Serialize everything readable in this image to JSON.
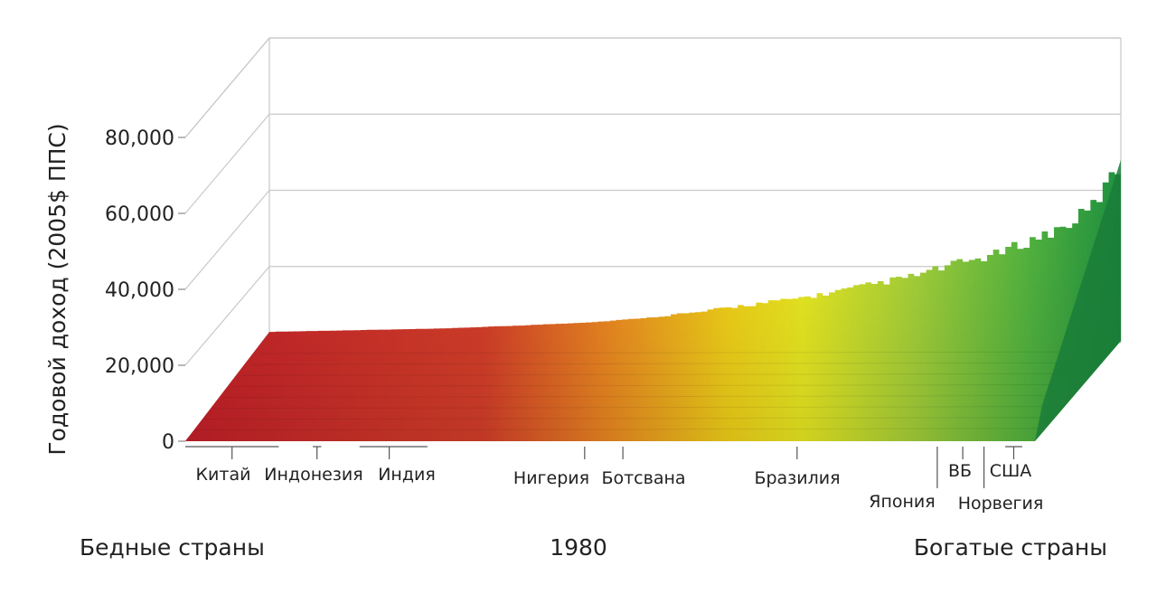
{
  "chart_data": {
    "type": "bar",
    "ylabel": "Годовой доход (2005$ ППС)",
    "ylim": [
      0,
      80000
    ],
    "yticks": [
      "0",
      "20,000",
      "40,000",
      "60,000",
      "80,000"
    ],
    "ytick_values": [
      0,
      20000,
      40000,
      60000,
      80000
    ],
    "year_label": "1980",
    "left_label": "Бедные страны",
    "right_label": "Богатые страны",
    "countries": [
      {
        "name": "Китай",
        "pos": 0.055,
        "range": [
          0.0,
          0.11
        ]
      },
      {
        "name": "Индонезия",
        "pos": 0.155,
        "range": [
          0.15,
          0.16
        ]
      },
      {
        "name": "Индия",
        "pos": 0.24,
        "range": [
          0.205,
          0.285
        ]
      },
      {
        "name": "Нигерия",
        "pos": 0.47,
        "range": [
          0.47,
          0.47
        ]
      },
      {
        "name": "Ботсвана",
        "pos": 0.515,
        "range": [
          0.515,
          0.515
        ]
      },
      {
        "name": "Бразилия",
        "pos": 0.72,
        "range": [
          0.72,
          0.72
        ]
      },
      {
        "name": "Япония",
        "pos": 0.885,
        "range": [
          0.885,
          0.885
        ]
      },
      {
        "name": "ВБ",
        "pos": 0.915,
        "range": [
          0.915,
          0.915
        ]
      },
      {
        "name": "Норвегия",
        "pos": 0.94,
        "range": [
          0.94,
          0.94
        ]
      },
      {
        "name": "США",
        "pos": 0.975,
        "range": [
          0.965,
          0.985
        ]
      }
    ],
    "income_profile": {
      "x": [
        0.0,
        0.1,
        0.2,
        0.3,
        0.38,
        0.45,
        0.5,
        0.55,
        0.6,
        0.65,
        0.7,
        0.75,
        0.8,
        0.85,
        0.9,
        0.93,
        0.96,
        0.98,
        1.0
      ],
      "y": [
        2500,
        3000,
        3500,
        4500,
        5500,
        7000,
        8000,
        10000,
        11500,
        13500,
        16000,
        18500,
        22000,
        25000,
        30000,
        33000,
        38000,
        45000,
        53000
      ]
    }
  }
}
